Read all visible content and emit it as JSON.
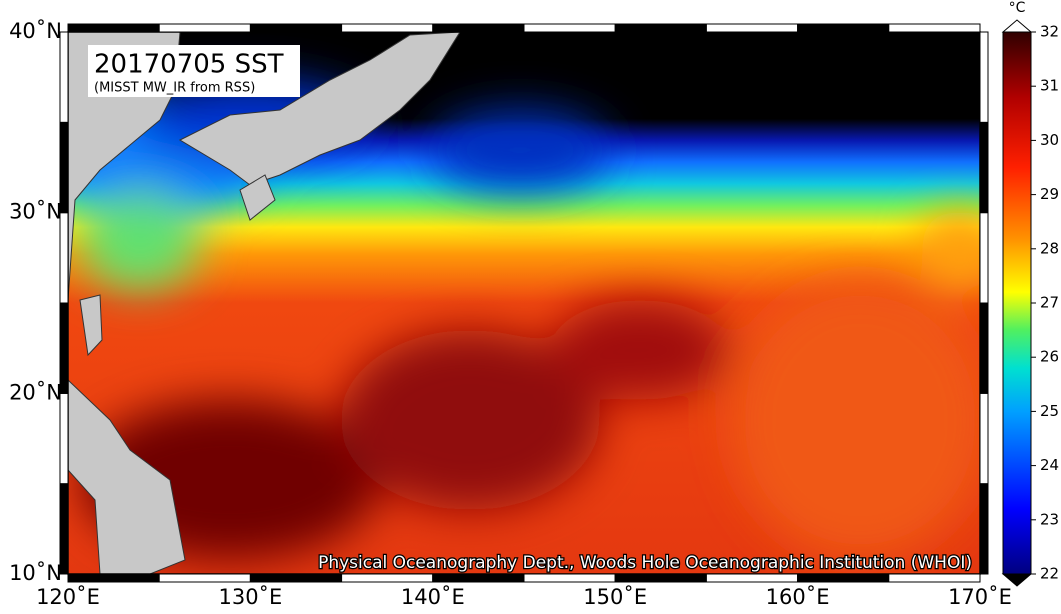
{
  "map": {
    "title": "20170705 SST",
    "subtitle": "(MISST MW_IR from RSS)",
    "credit": "Physical Oceanography Dept., Woods Hole Oceanographic Institution (WHOI)",
    "xlim": [
      120,
      170
    ],
    "ylim": [
      10,
      40
    ],
    "xticks": [
      {
        "value": 120,
        "label": "120˚E"
      },
      {
        "value": 130,
        "label": "130˚E"
      },
      {
        "value": 140,
        "label": "140˚E"
      },
      {
        "value": 150,
        "label": "150˚E"
      },
      {
        "value": 160,
        "label": "160˚E"
      },
      {
        "value": 170,
        "label": "170˚E"
      }
    ],
    "yticks": [
      {
        "value": 10,
        "label": "10˚N"
      },
      {
        "value": 20,
        "label": "20˚N"
      },
      {
        "value": 30,
        "label": "30˚N"
      },
      {
        "value": 40,
        "label": "40˚N"
      }
    ],
    "colorbar": {
      "unit": "°C",
      "lim": [
        22,
        32
      ],
      "ticks": [
        22,
        23,
        24,
        25,
        26,
        27,
        28,
        29,
        30,
        31,
        32
      ]
    }
  }
}
